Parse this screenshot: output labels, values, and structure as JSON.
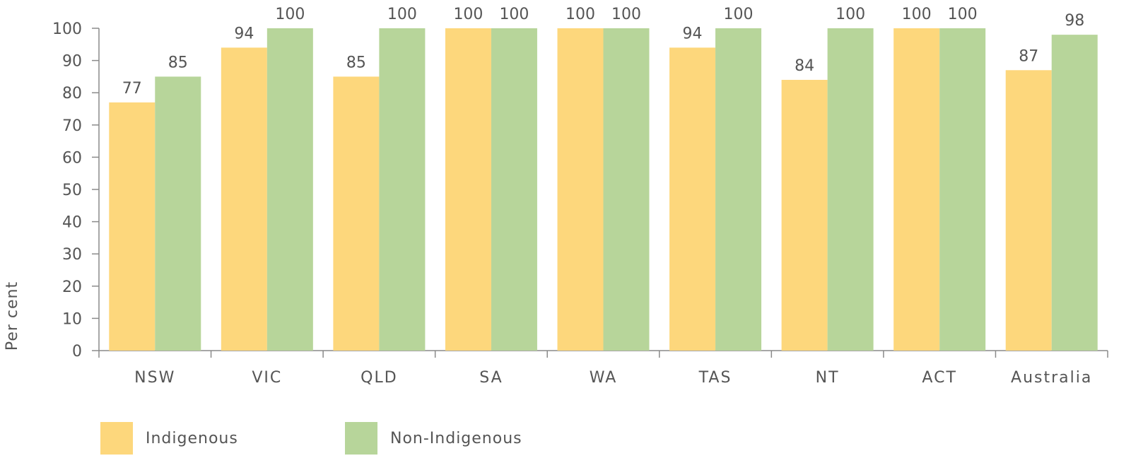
{
  "chart_data": {
    "type": "bar",
    "categories": [
      "NSW",
      "VIC",
      "QLD",
      "SA",
      "WA",
      "TAS",
      "NT",
      "ACT",
      "Australia"
    ],
    "series": [
      {
        "name": "Indigenous",
        "color": "#fdd77c",
        "values": [
          77,
          94,
          85,
          100,
          100,
          94,
          84,
          100,
          87
        ]
      },
      {
        "name": "Non-Indigenous",
        "color": "#b7d59a",
        "values": [
          85,
          100,
          100,
          100,
          100,
          100,
          100,
          100,
          98
        ]
      }
    ],
    "ylabel": "Per cent",
    "ylim": [
      0,
      100
    ],
    "yticks": [
      0,
      10,
      20,
      30,
      40,
      50,
      60,
      70,
      80,
      90,
      100
    ],
    "grid": false,
    "legend_position": "bottom-left",
    "axis_color": "#8a8a8a"
  }
}
